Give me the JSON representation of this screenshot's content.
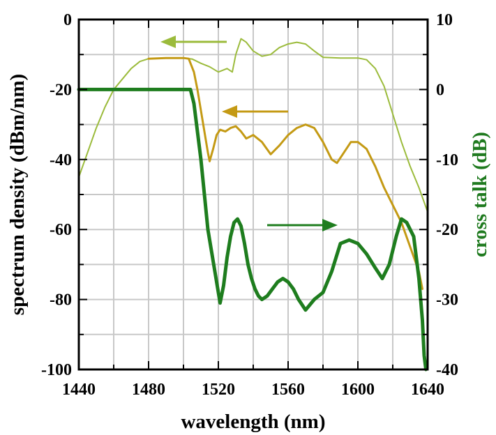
{
  "chart_data": {
    "type": "line",
    "title": "",
    "xlabel": "wavelength (nm)",
    "ylabel_left": "spectrum density (dBm/nm)",
    "ylabel_right": "cross talk (dB)",
    "ylabel_right_color": "#1f7a1f",
    "xlim": [
      1440,
      1640
    ],
    "ylim_left": [
      -100,
      0
    ],
    "ylim_right": [
      -40,
      10
    ],
    "x_ticks": [
      1440,
      1480,
      1520,
      1560,
      1600,
      1640
    ],
    "y_left_ticks": [
      0,
      -20,
      -40,
      -60,
      -80,
      -100
    ],
    "y_right_ticks": [
      10,
      0,
      -10,
      -20,
      -30,
      -40
    ],
    "grid": true,
    "series": [
      {
        "axis": "left",
        "color": "#9bbb3b",
        "points": [
          [
            1440,
            -45
          ],
          [
            1445,
            -38
          ],
          [
            1450,
            -31
          ],
          [
            1455,
            -25
          ],
          [
            1460,
            -20
          ],
          [
            1465,
            -17
          ],
          [
            1470,
            -14
          ],
          [
            1475,
            -12
          ],
          [
            1480,
            -11.2
          ],
          [
            1490,
            -11
          ],
          [
            1500,
            -11
          ],
          [
            1505,
            -11.3
          ],
          [
            1510,
            -12.5
          ],
          [
            1515,
            -13.5
          ],
          [
            1520,
            -15
          ],
          [
            1525,
            -14
          ],
          [
            1528,
            -15
          ],
          [
            1530,
            -10
          ],
          [
            1533,
            -5.5
          ],
          [
            1536,
            -6.5
          ],
          [
            1540,
            -9
          ],
          [
            1545,
            -10.5
          ],
          [
            1550,
            -10
          ],
          [
            1555,
            -8
          ],
          [
            1560,
            -7
          ],
          [
            1565,
            -6.5
          ],
          [
            1570,
            -7
          ],
          [
            1575,
            -9
          ],
          [
            1580,
            -10.8
          ],
          [
            1590,
            -11
          ],
          [
            1600,
            -11
          ],
          [
            1605,
            -11.5
          ],
          [
            1610,
            -14
          ],
          [
            1615,
            -19
          ],
          [
            1620,
            -27
          ],
          [
            1625,
            -35
          ],
          [
            1630,
            -42
          ],
          [
            1635,
            -48
          ],
          [
            1640,
            -55
          ]
        ]
      },
      {
        "axis": "left",
        "color": "#c49a14",
        "points": [
          [
            1480,
            -11.2
          ],
          [
            1490,
            -11
          ],
          [
            1500,
            -11
          ],
          [
            1503,
            -11.2
          ],
          [
            1506,
            -15
          ],
          [
            1508,
            -20
          ],
          [
            1510,
            -26
          ],
          [
            1512,
            -32
          ],
          [
            1514,
            -38
          ],
          [
            1515,
            -40.5
          ],
          [
            1517,
            -37
          ],
          [
            1519,
            -33
          ],
          [
            1521,
            -31.5
          ],
          [
            1524,
            -32
          ],
          [
            1527,
            -31
          ],
          [
            1530,
            -30.5
          ],
          [
            1533,
            -32
          ],
          [
            1536,
            -34
          ],
          [
            1540,
            -33
          ],
          [
            1545,
            -35
          ],
          [
            1550,
            -38.5
          ],
          [
            1555,
            -36
          ],
          [
            1560,
            -33
          ],
          [
            1565,
            -31
          ],
          [
            1570,
            -30
          ],
          [
            1575,
            -31
          ],
          [
            1580,
            -35
          ],
          [
            1585,
            -40
          ],
          [
            1588,
            -41
          ],
          [
            1592,
            -38
          ],
          [
            1596,
            -35
          ],
          [
            1600,
            -35
          ],
          [
            1605,
            -37
          ],
          [
            1610,
            -42
          ],
          [
            1615,
            -48
          ],
          [
            1620,
            -53
          ],
          [
            1625,
            -58
          ],
          [
            1630,
            -65
          ],
          [
            1635,
            -72
          ],
          [
            1637,
            -77
          ]
        ]
      },
      {
        "axis": "right",
        "color": "#1e7d1e",
        "points": [
          [
            1440,
            0
          ],
          [
            1460,
            0
          ],
          [
            1480,
            0
          ],
          [
            1500,
            0
          ],
          [
            1504,
            0
          ],
          [
            1506,
            -2
          ],
          [
            1508,
            -6
          ],
          [
            1510,
            -10
          ],
          [
            1512,
            -15
          ],
          [
            1514,
            -20
          ],
          [
            1516,
            -23
          ],
          [
            1518,
            -26
          ],
          [
            1520,
            -29
          ],
          [
            1521,
            -30.5
          ],
          [
            1523,
            -28
          ],
          [
            1525,
            -24
          ],
          [
            1527,
            -21
          ],
          [
            1529,
            -19
          ],
          [
            1531,
            -18.5
          ],
          [
            1533,
            -19.5
          ],
          [
            1535,
            -22
          ],
          [
            1537,
            -25
          ],
          [
            1539,
            -27
          ],
          [
            1541,
            -28.5
          ],
          [
            1543,
            -29.5
          ],
          [
            1545,
            -30
          ],
          [
            1548,
            -29.5
          ],
          [
            1551,
            -28.5
          ],
          [
            1554,
            -27.5
          ],
          [
            1557,
            -27
          ],
          [
            1560,
            -27.5
          ],
          [
            1563,
            -28.5
          ],
          [
            1566,
            -30
          ],
          [
            1570,
            -31.5
          ],
          [
            1575,
            -30
          ],
          [
            1580,
            -29
          ],
          [
            1585,
            -26
          ],
          [
            1590,
            -22
          ],
          [
            1595,
            -21.5
          ],
          [
            1600,
            -22
          ],
          [
            1605,
            -23.5
          ],
          [
            1610,
            -25.5
          ],
          [
            1614,
            -27
          ],
          [
            1618,
            -25
          ],
          [
            1622,
            -21
          ],
          [
            1625,
            -18.5
          ],
          [
            1628,
            -19
          ],
          [
            1632,
            -21
          ],
          [
            1635,
            -27
          ],
          [
            1637,
            -33
          ],
          [
            1638,
            -38
          ],
          [
            1639,
            -40
          ]
        ]
      }
    ],
    "annotations": [
      {
        "type": "arrow",
        "direction": "left",
        "color": "#9bbb3b"
      },
      {
        "type": "arrow",
        "direction": "left",
        "color": "#c49a14"
      },
      {
        "type": "arrow",
        "direction": "right",
        "color": "#1e7d1e"
      }
    ]
  }
}
